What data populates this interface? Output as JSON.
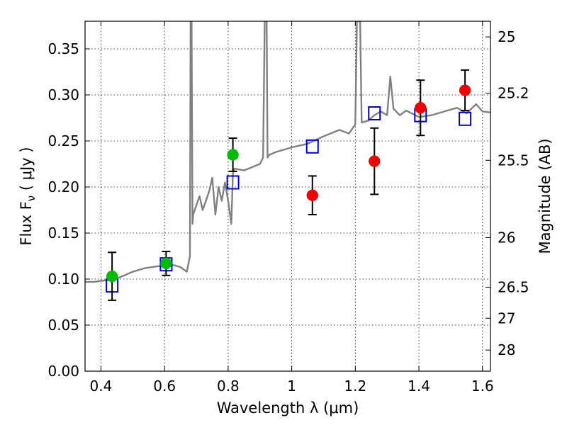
{
  "chart_data": {
    "type": "scatter",
    "xlabel": "Wavelength  λ (μm)",
    "ylabel": "Flux  Fν  ( μJy )",
    "y2label": "Magnitude (AB)",
    "xlim": [
      0.35,
      1.625
    ],
    "ylim": [
      0.0,
      0.38
    ],
    "x_ticks": [
      0.4,
      0.6,
      0.8,
      1.0,
      1.2,
      1.4,
      1.6
    ],
    "x_tick_labels": [
      "0.4",
      "0.6",
      "0.8",
      "1",
      "1.2",
      "1.4",
      "1.6"
    ],
    "y_ticks": [
      0.0,
      0.05,
      0.1,
      0.15,
      0.2,
      0.25,
      0.3,
      0.35
    ],
    "y_tick_labels": [
      "0.00",
      "0.05",
      "0.10",
      "0.15",
      "0.20",
      "0.25",
      "0.30",
      "0.35"
    ],
    "mag_ticks": [
      {
        "label": "25",
        "flux": 0.363
      },
      {
        "label": "25.2",
        "flux": 0.302
      },
      {
        "label": "25.5",
        "flux": 0.229
      },
      {
        "label": "26",
        "flux": 0.145
      },
      {
        "label": "26.5",
        "flux": 0.0912
      },
      {
        "label": "27",
        "flux": 0.0575
      },
      {
        "label": "28",
        "flux": 0.0229
      }
    ],
    "grid": true,
    "colors": {
      "spectrum": "#808080",
      "model_points": "#0000cc",
      "green_points": "#00bb00",
      "red_points": "#ee0000",
      "error_bars": "#000000"
    },
    "series": [
      {
        "kind": "line",
        "color": "#808080",
        "x": [
          0.35,
          0.38,
          0.4,
          0.43,
          0.46,
          0.5,
          0.54,
          0.58,
          0.62,
          0.65,
          0.67,
          0.68,
          0.682,
          0.685,
          0.688,
          0.69,
          0.7,
          0.71,
          0.72,
          0.74,
          0.75,
          0.76,
          0.77,
          0.78,
          0.79,
          0.8,
          0.81,
          0.815,
          0.82,
          0.85,
          0.9,
          0.91,
          0.915,
          0.918,
          0.921,
          0.924,
          0.93,
          0.95,
          1.0,
          1.05,
          1.1,
          1.15,
          1.18,
          1.2,
          1.205,
          1.21,
          1.215,
          1.22,
          1.24,
          1.25,
          1.26,
          1.28,
          1.3,
          1.31,
          1.32,
          1.34,
          1.36,
          1.4,
          1.44,
          1.48,
          1.52,
          1.55,
          1.58,
          1.6,
          1.625
        ],
        "y": [
          0.097,
          0.097,
          0.098,
          0.099,
          0.102,
          0.108,
          0.112,
          0.114,
          0.116,
          0.113,
          0.108,
          0.125,
          0.38,
          0.38,
          0.16,
          0.17,
          0.18,
          0.19,
          0.175,
          0.195,
          0.21,
          0.17,
          0.2,
          0.185,
          0.205,
          0.185,
          0.16,
          0.215,
          0.22,
          0.218,
          0.225,
          0.232,
          0.38,
          0.38,
          0.38,
          0.232,
          0.235,
          0.238,
          0.243,
          0.247,
          0.255,
          0.262,
          0.258,
          0.268,
          0.38,
          0.38,
          0.38,
          0.27,
          0.272,
          0.275,
          0.278,
          0.282,
          0.278,
          0.32,
          0.285,
          0.278,
          0.283,
          0.276,
          0.278,
          0.282,
          0.286,
          0.28,
          0.29,
          0.282,
          0.281
        ]
      },
      {
        "kind": "scatter",
        "marker": "square",
        "color": "#0000cc",
        "x": [
          0.435,
          0.605,
          0.815,
          1.065,
          1.26,
          1.405,
          1.545
        ],
        "y": [
          0.093,
          0.116,
          0.205,
          0.244,
          0.28,
          0.278,
          0.274
        ]
      },
      {
        "kind": "scatter",
        "marker": "circle",
        "color": "#00bb00",
        "x": [
          0.435,
          0.605,
          0.815
        ],
        "y": [
          0.103,
          0.117,
          0.235
        ],
        "yerr": [
          0.026,
          0.013,
          0.018
        ]
      },
      {
        "kind": "scatter",
        "marker": "circle",
        "color": "#ee0000",
        "x": [
          1.065,
          1.26,
          1.405,
          1.545
        ],
        "y": [
          0.191,
          0.228,
          0.286,
          0.305
        ],
        "yerr": [
          0.021,
          0.036,
          0.03,
          0.022
        ]
      }
    ]
  }
}
